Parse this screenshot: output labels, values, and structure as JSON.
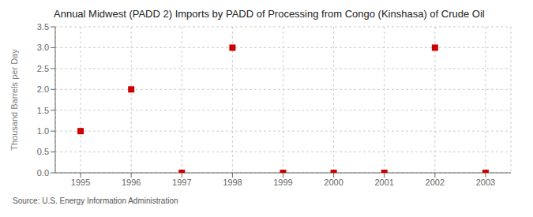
{
  "chart_data": {
    "type": "scatter",
    "title": "Annual Midwest (PADD 2) Imports by PADD of Processing from Congo (Kinshasa) of Crude Oil",
    "ylabel": "Thousand Barrels per Day",
    "source": "Source: U.S. Energy Information Administration",
    "x": [
      1995,
      1996,
      1997,
      1998,
      1999,
      2000,
      2001,
      2002,
      2003
    ],
    "values": [
      1.0,
      2.0,
      0.0,
      3.0,
      0.0,
      0.0,
      0.0,
      3.0,
      0.0
    ],
    "color": "#cc0000",
    "marker": "square",
    "xlim": [
      1994.5,
      2003.5
    ],
    "xticks": [
      1995,
      1996,
      1997,
      1998,
      1999,
      2000,
      2001,
      2002,
      2003
    ],
    "ylim": [
      0.0,
      3.5
    ],
    "yticks": [
      {
        "value": 0.0,
        "label": "0.0"
      },
      0.5,
      {
        "value": 1.0,
        "label": "1.0"
      },
      1.5,
      {
        "value": 2.0,
        "label": "2.0"
      },
      2.5,
      {
        "value": 3.0,
        "label": "3.0"
      },
      3.5
    ],
    "grid": true
  }
}
